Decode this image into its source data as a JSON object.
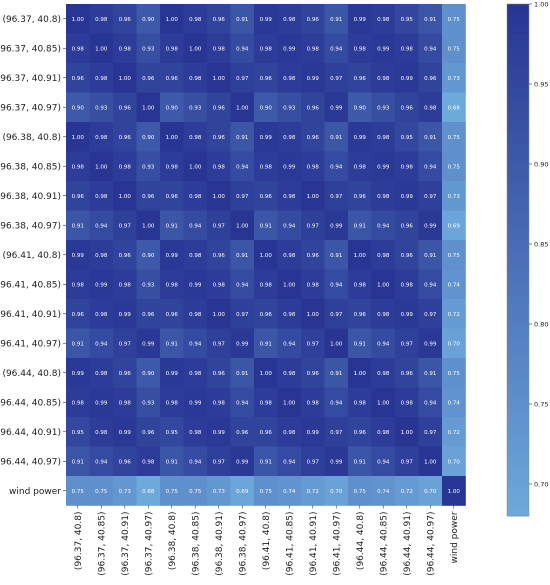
{
  "chart_data": {
    "type": "heatmap",
    "labels": [
      "(96.37, 40.8)",
      "(96.37, 40.85)",
      "(96.37, 40.91)",
      "(96.37, 40.97)",
      "(96.38, 40.8)",
      "(96.38, 40.85)",
      "(96.38, 40.91)",
      "(96.38, 40.97)",
      "(96.41, 40.8)",
      "(96.41, 40.85)",
      "(96.41, 40.91)",
      "(96.41, 40.97)",
      "(96.44, 40.8)",
      "(96.44, 40.85)",
      "(96.44, 40.91)",
      "(96.44, 40.97)",
      "wind power"
    ],
    "matrix": [
      [
        1.0,
        0.98,
        0.96,
        0.9,
        1.0,
        0.98,
        0.96,
        0.91,
        0.99,
        0.98,
        0.96,
        0.91,
        0.99,
        0.98,
        0.95,
        0.91,
        0.75
      ],
      [
        0.98,
        1.0,
        0.98,
        0.93,
        0.98,
        1.0,
        0.98,
        0.94,
        0.98,
        0.99,
        0.98,
        0.94,
        0.98,
        0.99,
        0.98,
        0.94,
        0.75
      ],
      [
        0.96,
        0.98,
        1.0,
        0.96,
        0.96,
        0.98,
        1.0,
        0.97,
        0.96,
        0.98,
        0.99,
        0.97,
        0.96,
        0.98,
        0.99,
        0.96,
        0.73
      ],
      [
        0.9,
        0.93,
        0.96,
        1.0,
        0.9,
        0.93,
        0.96,
        1.0,
        0.9,
        0.93,
        0.96,
        0.99,
        0.9,
        0.93,
        0.96,
        0.98,
        0.68
      ],
      [
        1.0,
        0.98,
        0.96,
        0.9,
        1.0,
        0.98,
        0.96,
        0.91,
        0.99,
        0.98,
        0.96,
        0.91,
        0.99,
        0.98,
        0.95,
        0.91,
        0.75
      ],
      [
        0.98,
        1.0,
        0.98,
        0.93,
        0.98,
        1.0,
        0.98,
        0.94,
        0.98,
        0.99,
        0.98,
        0.94,
        0.98,
        0.99,
        0.98,
        0.94,
        0.75
      ],
      [
        0.96,
        0.98,
        1.0,
        0.96,
        0.96,
        0.98,
        1.0,
        0.97,
        0.96,
        0.98,
        1.0,
        0.97,
        0.96,
        0.98,
        0.99,
        0.97,
        0.73
      ],
      [
        0.91,
        0.94,
        0.97,
        1.0,
        0.91,
        0.94,
        0.97,
        1.0,
        0.91,
        0.94,
        0.97,
        0.99,
        0.91,
        0.94,
        0.96,
        0.99,
        0.69
      ],
      [
        0.99,
        0.98,
        0.96,
        0.9,
        0.99,
        0.98,
        0.96,
        0.91,
        1.0,
        0.98,
        0.96,
        0.91,
        1.0,
        0.98,
        0.96,
        0.91,
        0.75
      ],
      [
        0.98,
        0.99,
        0.98,
        0.93,
        0.98,
        0.99,
        0.98,
        0.94,
        0.98,
        1.0,
        0.98,
        0.94,
        0.98,
        1.0,
        0.98,
        0.94,
        0.74
      ],
      [
        0.96,
        0.98,
        0.99,
        0.96,
        0.96,
        0.98,
        1.0,
        0.97,
        0.96,
        0.98,
        1.0,
        0.97,
        0.96,
        0.98,
        0.99,
        0.97,
        0.72
      ],
      [
        0.91,
        0.94,
        0.97,
        0.99,
        0.91,
        0.94,
        0.97,
        0.99,
        0.91,
        0.94,
        0.97,
        1.0,
        0.91,
        0.94,
        0.97,
        0.99,
        0.7
      ],
      [
        0.99,
        0.98,
        0.96,
        0.9,
        0.99,
        0.98,
        0.96,
        0.91,
        1.0,
        0.98,
        0.96,
        0.91,
        1.0,
        0.98,
        0.96,
        0.91,
        0.75
      ],
      [
        0.98,
        0.99,
        0.98,
        0.93,
        0.98,
        0.99,
        0.98,
        0.94,
        0.98,
        1.0,
        0.98,
        0.94,
        0.98,
        1.0,
        0.98,
        0.94,
        0.74
      ],
      [
        0.95,
        0.98,
        0.99,
        0.96,
        0.95,
        0.98,
        0.99,
        0.96,
        0.96,
        0.98,
        0.99,
        0.97,
        0.96,
        0.98,
        1.0,
        0.97,
        0.72
      ],
      [
        0.91,
        0.94,
        0.96,
        0.98,
        0.91,
        0.94,
        0.97,
        0.99,
        0.91,
        0.94,
        0.97,
        0.99,
        0.91,
        0.94,
        0.97,
        1.0,
        0.7
      ],
      [
        0.75,
        0.75,
        0.73,
        0.68,
        0.75,
        0.75,
        0.73,
        0.69,
        0.75,
        0.74,
        0.72,
        0.7,
        0.75,
        0.74,
        0.72,
        0.7,
        1.0
      ]
    ],
    "value_format": "0.00",
    "colorscale": {
      "min": 0.68,
      "max": 1.0,
      "low_color": "#6ea9db",
      "high_color": "#283593",
      "ticks": [
        "0.70",
        "0.75",
        "0.80",
        "0.85",
        "0.90",
        "0.95",
        "1.00"
      ]
    },
    "colorbar_position": "right",
    "annotation_color": "#ffffff",
    "grid": false
  }
}
